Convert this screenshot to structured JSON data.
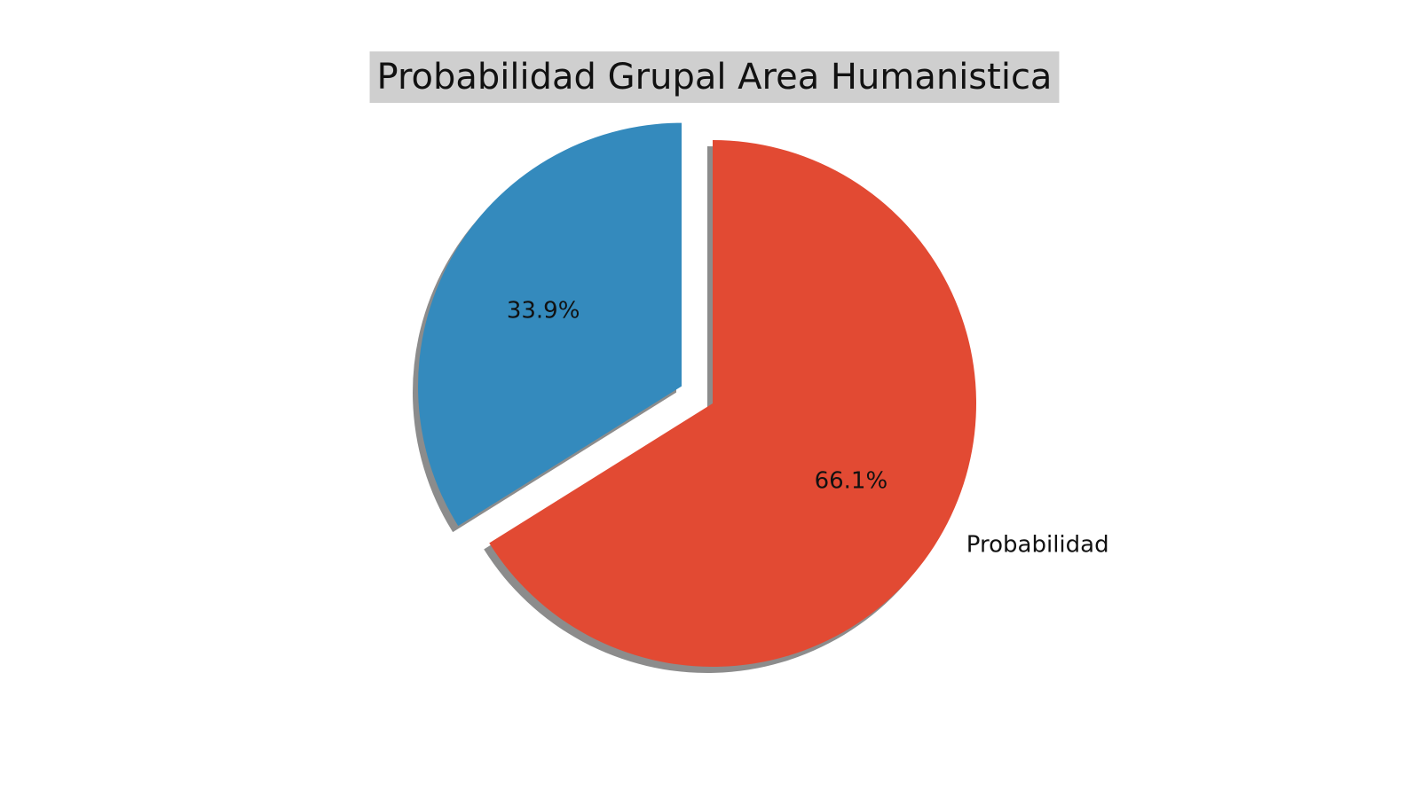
{
  "chart_data": {
    "type": "pie",
    "title": "Probabilidad Grupal Area Humanistica",
    "slices": [
      {
        "label": "Probabilidad",
        "value": 66.1,
        "pct_label": "66.1%",
        "color": "#e24a33",
        "exploded": false
      },
      {
        "label": "",
        "value": 33.9,
        "pct_label": "33.9%",
        "color": "#348abd",
        "exploded": true
      }
    ],
    "start_angle_deg": 90,
    "direction": "clockwise",
    "shadow": true,
    "title_background": "#cfcfcf"
  }
}
